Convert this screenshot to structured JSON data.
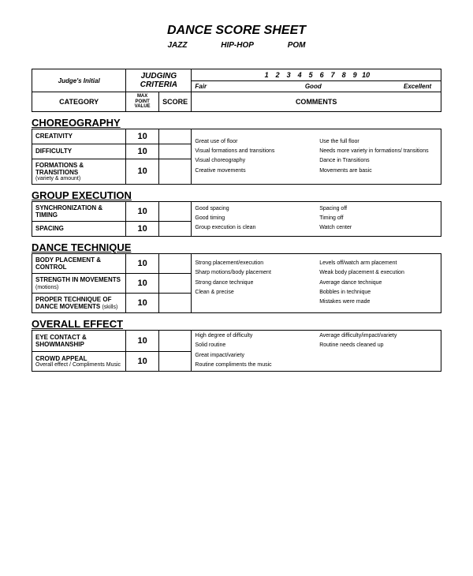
{
  "title": "DANCE SCORE SHEET",
  "styles": {
    "a": "JAZZ",
    "b": "HIP-HOP",
    "c": "POM"
  },
  "header": {
    "judges_initial": "Judge's Initial",
    "judging_criteria": "JUDGING CRITERIA",
    "numbers": [
      "1",
      "2",
      "3",
      "4",
      "5",
      "6",
      "7",
      "8",
      "9",
      "10"
    ],
    "scale": {
      "fair": "Fair",
      "good": "Good",
      "excellent": "Excellent"
    },
    "category": "CATEGORY",
    "max_point_value": "MAX POINT VALUE",
    "score": "SCORE",
    "comments": "COMMENTS"
  },
  "sections": {
    "choreography": {
      "title": "CHOREOGRAPHY",
      "rows": [
        {
          "label": "CREATIVITY",
          "sub": "",
          "mpv": "10"
        },
        {
          "label": "DIFFICULTY",
          "sub": "",
          "mpv": "10"
        },
        {
          "label": "FORMATIONS & TRANSITIONS",
          "sub": "(variety & amount)",
          "mpv": "10"
        }
      ],
      "comments": [
        "Great use of floor",
        "Use the full floor",
        "Visual formations and transitions",
        "Needs more variety in formations/ transitions",
        "Visual choreography",
        "Dance in Transitions",
        "Creative movements",
        "Movements are basic"
      ]
    },
    "group_execution": {
      "title": "GROUP EXECUTION",
      "rows": [
        {
          "label": "SYNCHRONIZATION & TIMING",
          "sub": "",
          "mpv": "10"
        },
        {
          "label": "SPACING",
          "sub": "",
          "mpv": "10"
        }
      ],
      "comments": [
        "Good spacing",
        "Spacing off",
        "Good timing",
        "Timing off",
        "Group execution is clean",
        "Watch center"
      ]
    },
    "dance_technique": {
      "title": "DANCE TECHNIQUE",
      "rows": [
        {
          "label": "BODY PLACEMENT & CONTROL",
          "sub": "",
          "mpv": "10"
        },
        {
          "label": "STRENGTH IN MOVEMENTS",
          "sub": "(motions)",
          "mpv": "10"
        },
        {
          "label": "PROPER TECHNIQUE OF DANCE MOVEMENTS",
          "sub": "(skills)",
          "mpv": "10"
        }
      ],
      "comments": [
        "Strong placement/execution",
        "Levels off/watch arm placement",
        "Sharp motions/body placement",
        "Weak body placement & execution",
        "Strong dance technique",
        "Average dance technique",
        "Clean & precise",
        "Bobbles in technique",
        "",
        "Mistakes were made"
      ]
    },
    "overall_effect": {
      "title": "OVERALL EFFECT",
      "rows": [
        {
          "label": "EYE CONTACT & SHOWMANSHIP",
          "sub": "",
          "mpv": "10"
        },
        {
          "label": "CROWD APPEAL",
          "sub": "Overall effect / Compliments Music",
          "mpv": "10"
        }
      ],
      "comments": [
        "High degree of difficulty",
        "Average difficulty/impact/variety",
        "Solid routine",
        "Routine needs cleaned up",
        "Great impact/variety",
        "",
        "Routine compliments the music",
        ""
      ]
    }
  }
}
